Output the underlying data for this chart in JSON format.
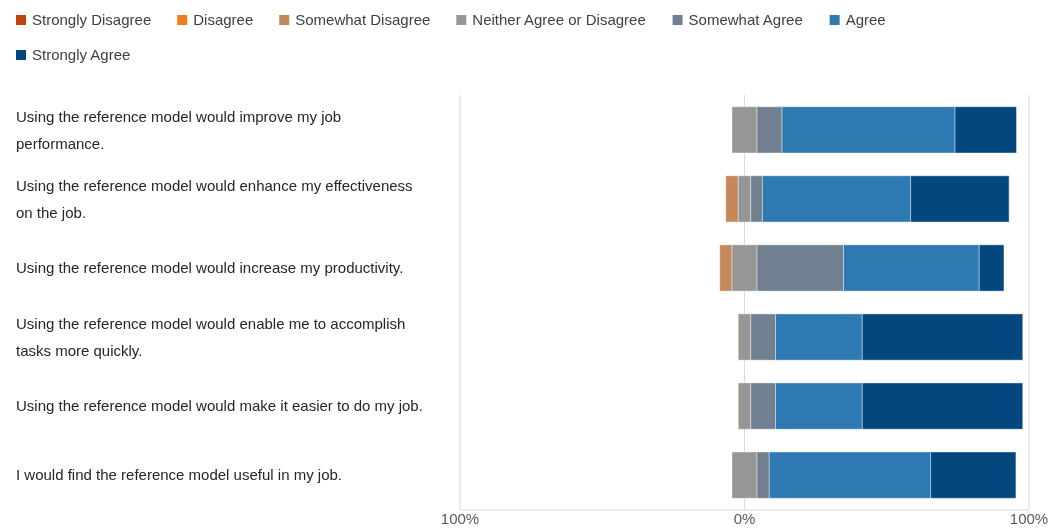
{
  "chart_data": {
    "type": "bar",
    "orientation": "horizontal",
    "categories": [
      "Using the reference model would improve my job performance.",
      "Using the reference model would enhance my effectiveness on the job.",
      "Using the reference model would increase my productivity.",
      "Using the reference model would enable me to accomplish tasks more quickly.",
      "Using the reference model would make it easier to do my job.",
      "I would find the reference model useful in my job."
    ],
    "series": [
      {
        "name": "Strongly Disagree",
        "color": "#c0430f",
        "values": [
          null,
          null,
          null,
          null,
          null,
          null
        ],
        "base": [
          null,
          null,
          null,
          null,
          null,
          null
        ]
      },
      {
        "name": "Disagree",
        "color": "#f07b1b",
        "values": [
          null,
          null,
          null,
          null,
          null,
          null
        ],
        "base": [
          null,
          null,
          null,
          null,
          null,
          null
        ]
      },
      {
        "name": "Somewhat Disagree",
        "color": "#c4885b",
        "values": [
          null,
          4.4,
          4.3,
          null,
          null,
          null
        ],
        "base": [
          null,
          -6.6,
          -8.7,
          null,
          null,
          null
        ]
      },
      {
        "name": "Neither Agree or Disagree",
        "color": "#969696",
        "values": [
          8.8,
          4.4,
          8.8,
          4.4,
          4.4,
          8.8
        ],
        "base": [
          -4.4,
          -2.2,
          -4.4,
          -2.2,
          -2.2,
          -4.4
        ]
      },
      {
        "name": "Somewhat Agree",
        "color": "#718090",
        "values": [
          8.8,
          4.1,
          30.4,
          8.7,
          8.7,
          4.3
        ],
        "base": [
          4.4,
          2.2,
          4.4,
          2.2,
          2.2,
          4.4
        ]
      },
      {
        "name": "Agree",
        "color": "#2e79b1",
        "values": [
          60.8,
          52.1,
          47.7,
          30.5,
          30.5,
          56.7
        ],
        "base": [
          13.2,
          6.3,
          34.8,
          10.9,
          10.9,
          8.7
        ]
      },
      {
        "name": "Strongly Agree",
        "color": "#04477f",
        "values": [
          21.6,
          34.6,
          8.7,
          56.4,
          56.4,
          30.0
        ],
        "base": [
          74.0,
          58.4,
          82.5,
          41.4,
          41.4,
          65.4
        ]
      }
    ],
    "xlim": [
      -100,
      100
    ],
    "xticks": [
      {
        "value": -100,
        "label": "100%"
      },
      {
        "value": 0,
        "label": "0%"
      },
      {
        "value": 100,
        "label": "100%"
      }
    ],
    "grid": "x",
    "legend": "top"
  }
}
